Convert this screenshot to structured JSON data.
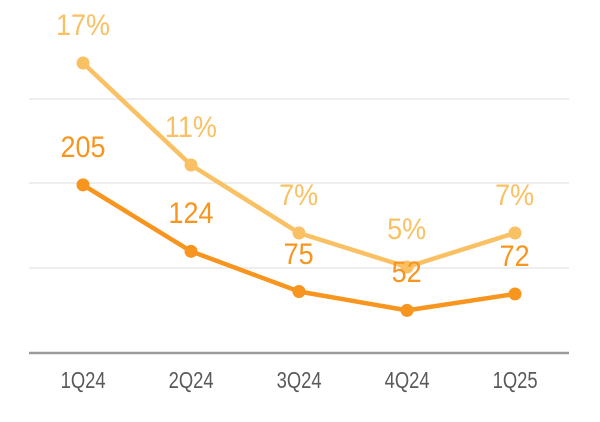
{
  "chart_data": {
    "type": "line",
    "categories": [
      "1Q24",
      "2Q24",
      "3Q24",
      "4Q24",
      "1Q25"
    ],
    "series": [
      {
        "name": "percent-series",
        "values": [
          17,
          11,
          7,
          5,
          7
        ],
        "labels": [
          "17%",
          "11%",
          "7%",
          "5%",
          "7%"
        ],
        "color": "#F9C164"
      },
      {
        "name": "value-series",
        "values": [
          205,
          124,
          75,
          52,
          72
        ],
        "labels": [
          "205",
          "124",
          "75",
          "52",
          "72"
        ],
        "color": "#F7951E"
      }
    ],
    "grid": "horizontal",
    "gridline_count": 3,
    "legend": "none",
    "y_axis_tick_labels": "none",
    "data_labels": "above-points"
  },
  "colors": {
    "background": "#FFFFFF",
    "gridline": "#E3E3E3",
    "axis_line": "#9A9A9A",
    "axis_text": "#595959"
  }
}
